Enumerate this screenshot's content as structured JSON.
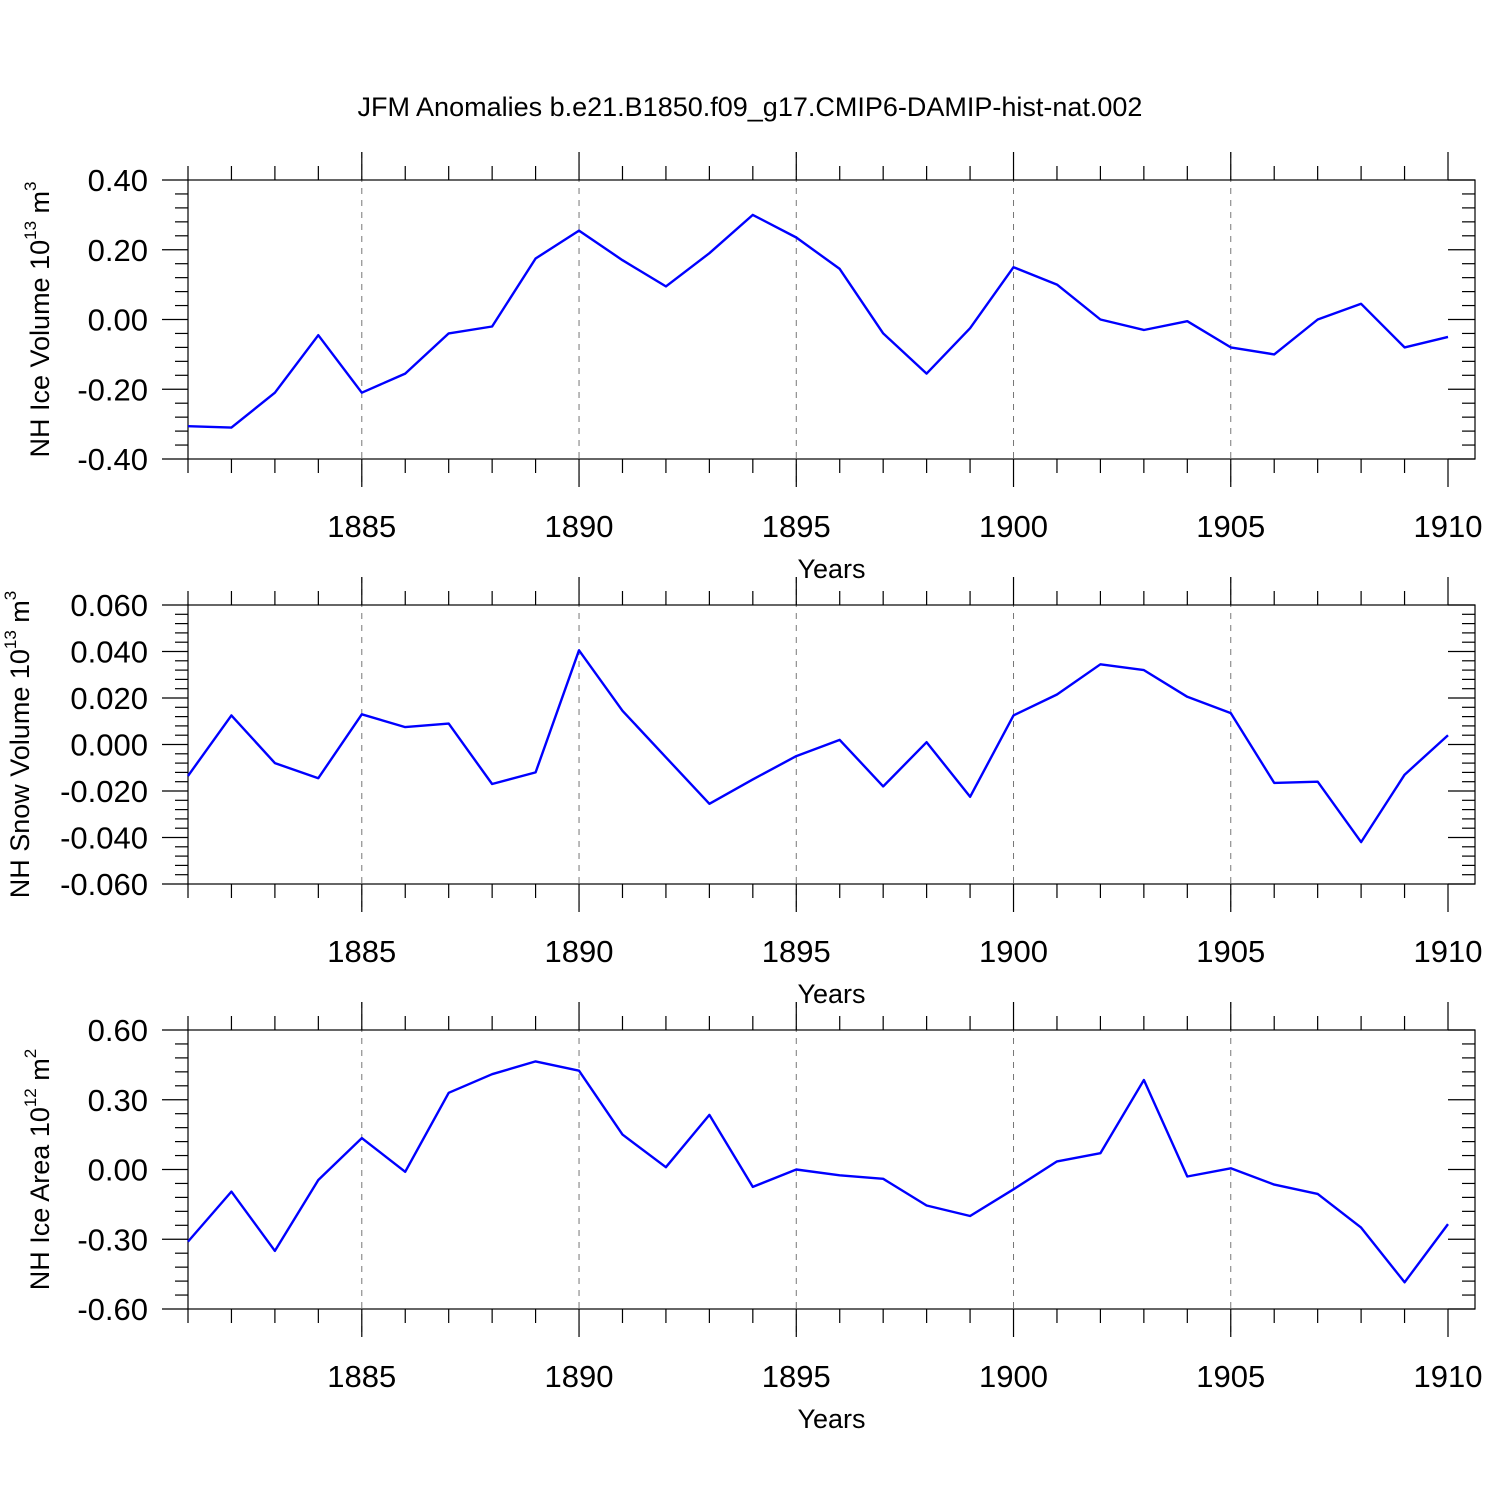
{
  "title": "JFM Anomalies b.e21.B1850.f09_g17.CMIP6-DAMIP-hist-nat.002",
  "colors": {
    "line": "#0000ff",
    "axis": "#000000",
    "grid": "#777777"
  },
  "chart_data": [
    {
      "type": "line",
      "xlabel": "Years",
      "ylabel_main": "NH Ice Volume 10",
      "ylabel_exp": "13",
      "ylabel_unit": " m",
      "ylabel_unit_exp": "3",
      "xlim": [
        1881,
        1910
      ],
      "ylim": [
        -0.4,
        0.4
      ],
      "y_major_ticks": [
        -0.4,
        -0.2,
        0.0,
        0.2,
        0.4
      ],
      "y_tick_labels": [
        "-0.40",
        "-0.20",
        "0.00",
        "0.20",
        "0.40"
      ],
      "x_major_ticks": [
        1885,
        1890,
        1895,
        1900,
        1905,
        1910
      ],
      "x_tick_labels": [
        "1885",
        "1890",
        "1895",
        "1900",
        "1905",
        "1910"
      ],
      "grid": "vertical dashed at major x ticks",
      "x": [
        1881,
        1882,
        1883,
        1884,
        1885,
        1886,
        1887,
        1888,
        1889,
        1890,
        1891,
        1892,
        1893,
        1894,
        1895,
        1896,
        1897,
        1898,
        1899,
        1900,
        1901,
        1902,
        1903,
        1904,
        1905,
        1906,
        1907,
        1908,
        1909,
        1910
      ],
      "values": [
        -0.306,
        -0.31,
        -0.21,
        -0.045,
        -0.21,
        -0.155,
        -0.04,
        -0.02,
        0.175,
        0.255,
        0.17,
        0.095,
        0.19,
        0.3,
        0.235,
        0.145,
        -0.04,
        -0.155,
        -0.025,
        0.15,
        0.1,
        0.0,
        -0.03,
        -0.005,
        -0.08,
        -0.1,
        0.0,
        0.045,
        -0.08,
        -0.05
      ]
    },
    {
      "type": "line",
      "xlabel": "Years",
      "ylabel_main": "NH Snow Volume 10",
      "ylabel_exp": "13",
      "ylabel_unit": " m",
      "ylabel_unit_exp": "3",
      "xlim": [
        1881,
        1910
      ],
      "ylim": [
        -0.06,
        0.06
      ],
      "y_major_ticks": [
        -0.06,
        -0.04,
        -0.02,
        0.0,
        0.02,
        0.04,
        0.06
      ],
      "y_tick_labels": [
        "-0.060",
        "-0.040",
        "-0.020",
        "0.000",
        "0.020",
        "0.040",
        "0.060"
      ],
      "x_major_ticks": [
        1885,
        1890,
        1895,
        1900,
        1905,
        1910
      ],
      "x_tick_labels": [
        "1885",
        "1890",
        "1895",
        "1900",
        "1905",
        "1910"
      ],
      "grid": "vertical dashed at major x ticks",
      "x": [
        1881,
        1882,
        1883,
        1884,
        1885,
        1886,
        1887,
        1888,
        1889,
        1890,
        1891,
        1892,
        1893,
        1894,
        1895,
        1896,
        1897,
        1898,
        1899,
        1900,
        1901,
        1902,
        1903,
        1904,
        1905,
        1906,
        1907,
        1908,
        1909,
        1910
      ],
      "values": [
        -0.0135,
        0.0125,
        -0.008,
        -0.0145,
        0.013,
        0.0075,
        0.009,
        -0.017,
        -0.012,
        0.0405,
        0.0145,
        -0.0055,
        -0.0255,
        -0.015,
        -0.005,
        0.002,
        -0.018,
        0.001,
        -0.0225,
        0.0125,
        0.0215,
        0.0345,
        0.032,
        0.0205,
        0.0135,
        -0.0165,
        -0.016,
        -0.042,
        -0.013,
        0.004
      ]
    },
    {
      "type": "line",
      "xlabel": "Years",
      "ylabel_main": "NH Ice Area 10",
      "ylabel_exp": "12",
      "ylabel_unit": " m",
      "ylabel_unit_exp": "2",
      "xlim": [
        1881,
        1910
      ],
      "ylim": [
        -0.6,
        0.6
      ],
      "y_major_ticks": [
        -0.6,
        -0.3,
        0.0,
        0.3,
        0.6
      ],
      "y_tick_labels": [
        "-0.60",
        "-0.30",
        "0.00",
        "0.30",
        "0.60"
      ],
      "x_major_ticks": [
        1885,
        1890,
        1895,
        1900,
        1905,
        1910
      ],
      "x_tick_labels": [
        "1885",
        "1890",
        "1895",
        "1900",
        "1905",
        "1910"
      ],
      "grid": "vertical dashed at major x ticks",
      "x": [
        1881,
        1882,
        1883,
        1884,
        1885,
        1886,
        1887,
        1888,
        1889,
        1890,
        1891,
        1892,
        1893,
        1894,
        1895,
        1896,
        1897,
        1898,
        1899,
        1900,
        1901,
        1902,
        1903,
        1904,
        1905,
        1906,
        1907,
        1908,
        1909,
        1910
      ],
      "values": [
        -0.31,
        -0.095,
        -0.35,
        -0.045,
        0.135,
        -0.01,
        0.33,
        0.41,
        0.465,
        0.425,
        0.15,
        0.01,
        0.235,
        -0.075,
        0.0,
        -0.025,
        -0.04,
        -0.155,
        -0.2,
        -0.085,
        0.035,
        0.07,
        0.385,
        -0.03,
        0.005,
        -0.065,
        -0.105,
        -0.25,
        -0.485,
        -0.235
      ]
    }
  ]
}
